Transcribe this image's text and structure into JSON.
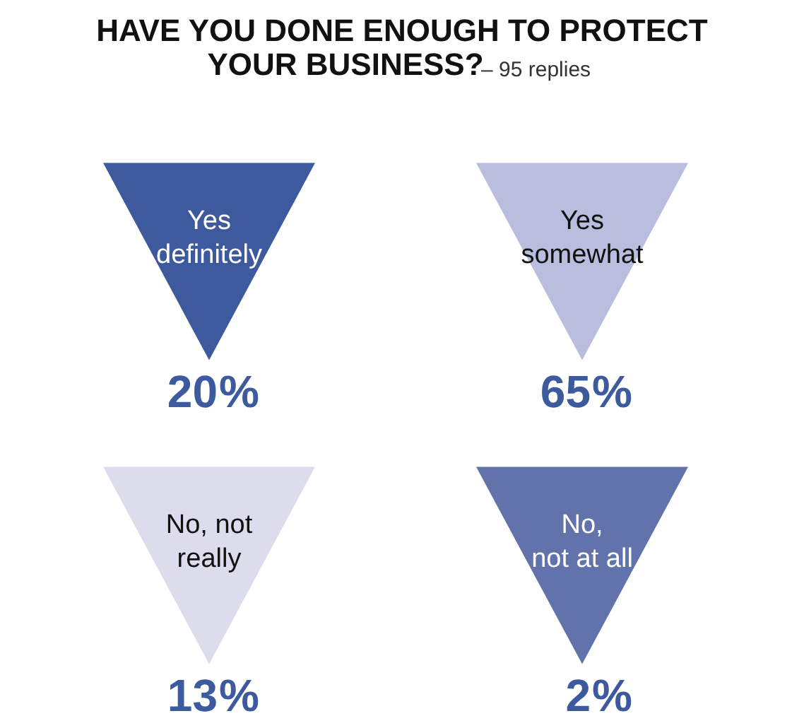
{
  "chart_data": {
    "type": "other",
    "title": "HAVE YOU DONE ENOUGH TO PROTECT\nYOUR BUSINESS?",
    "subtitle": "– 95 replies",
    "categories": [
      "Yes\ndefinitely",
      "Yes\nsomewhat",
      "No, not\nreally",
      "No,\nnot at all"
    ],
    "values": [
      20,
      65,
      13,
      2
    ],
    "colors": [
      "#3d5a9e",
      "#b9bedf",
      "#dcdced",
      "#6272aa"
    ],
    "data_labels": true,
    "annotations": [
      "%",
      "%",
      "%",
      "%"
    ]
  }
}
